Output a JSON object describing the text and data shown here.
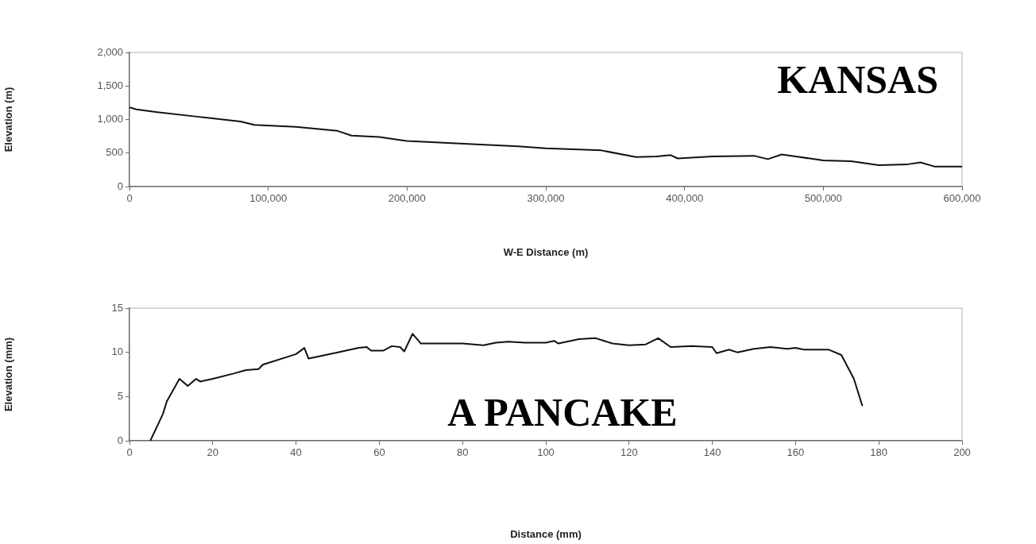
{
  "chart_data": [
    {
      "type": "line",
      "xlabel": "W-E Distance (m)",
      "ylabel": "Elevation (m)",
      "annotations": [
        "KANSAS"
      ],
      "color": "#111111",
      "marker": "none",
      "grid": false,
      "legend": false,
      "xlim": [
        0,
        600000
      ],
      "xticks": [
        0,
        {
          "value": 100000,
          "label": "100,000"
        },
        {
          "value": 200000,
          "label": "200,000"
        },
        {
          "value": 300000,
          "label": "300,000"
        },
        {
          "value": 400000,
          "label": "400,000"
        },
        {
          "value": 500000,
          "label": "500,000"
        },
        {
          "value": 600000,
          "label": "600,000"
        }
      ],
      "ylim": [
        0,
        2000
      ],
      "yticks": [
        0,
        500,
        {
          "value": 1000,
          "label": "1,000"
        },
        {
          "value": 1500,
          "label": "1,500"
        },
        {
          "value": 2000,
          "label": "2,000"
        }
      ],
      "x": [
        0,
        5000,
        20000,
        50000,
        80000,
        90000,
        120000,
        150000,
        160000,
        180000,
        200000,
        250000,
        280000,
        300000,
        340000,
        365000,
        380000,
        390000,
        395000,
        420000,
        450000,
        460000,
        470000,
        480000,
        500000,
        520000,
        540000,
        560000,
        570000,
        580000,
        600000
      ],
      "values": [
        1180,
        1150,
        1110,
        1040,
        970,
        920,
        890,
        830,
        760,
        740,
        680,
        630,
        600,
        570,
        540,
        440,
        450,
        470,
        420,
        450,
        460,
        410,
        480,
        450,
        390,
        380,
        320,
        330,
        360,
        300,
        300
      ]
    },
    {
      "type": "line",
      "xlabel": "Distance (mm)",
      "ylabel": "Elevation (mm)",
      "annotations": [
        "A PANCAKE"
      ],
      "color": "#111111",
      "marker": "none",
      "grid": false,
      "legend": false,
      "xlim": [
        0,
        200
      ],
      "xticks": [
        0,
        20,
        40,
        60,
        80,
        100,
        120,
        140,
        160,
        180,
        200
      ],
      "ylim": [
        0,
        15
      ],
      "yticks": [
        0,
        5,
        10,
        15
      ],
      "x": [
        5,
        8,
        9,
        12,
        14,
        16,
        17,
        20,
        25,
        28,
        31,
        32,
        40,
        42,
        43,
        50,
        55,
        57,
        58,
        61,
        63,
        65,
        66,
        68,
        70,
        80,
        85,
        88,
        91,
        95,
        100,
        102,
        103,
        108,
        112,
        116,
        120,
        124,
        127,
        130,
        135,
        140,
        141,
        144,
        146,
        150,
        154,
        158,
        160,
        162,
        168,
        171,
        174,
        176
      ],
      "values": [
        0,
        3,
        4.5,
        7,
        6.2,
        7,
        6.7,
        7,
        7.6,
        8,
        8.1,
        8.6,
        9.8,
        10.5,
        9.3,
        10,
        10.5,
        10.6,
        10.2,
        10.2,
        10.7,
        10.6,
        10.1,
        12.1,
        11,
        11,
        10.8,
        11.1,
        11.2,
        11.1,
        11.1,
        11.3,
        11,
        11.5,
        11.6,
        11,
        10.8,
        10.9,
        11.6,
        10.6,
        10.7,
        10.6,
        9.9,
        10.3,
        10,
        10.4,
        10.6,
        10.4,
        10.5,
        10.3,
        10.3,
        9.7,
        7,
        4
      ]
    }
  ]
}
